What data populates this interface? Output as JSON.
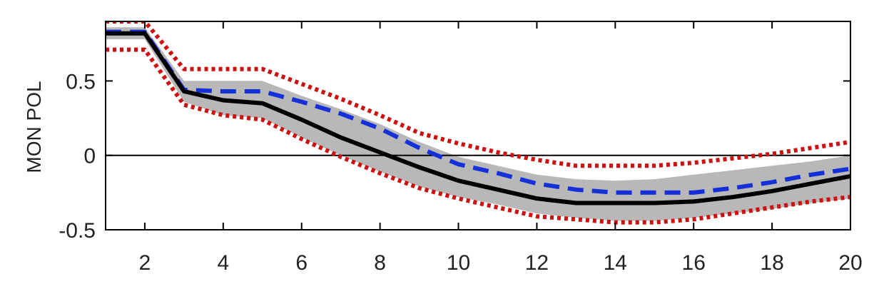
{
  "chart_data": {
    "type": "line",
    "title": "",
    "xlabel": "",
    "ylabel": "MON POL",
    "xlim": [
      1,
      20
    ],
    "ylim": [
      -0.5,
      0.9
    ],
    "xticks": [
      2,
      4,
      6,
      8,
      10,
      12,
      14,
      16,
      18,
      20
    ],
    "yticks": [
      -0.5,
      0,
      0.5
    ],
    "xtick_labels": [
      "2",
      "4",
      "6",
      "8",
      "10",
      "12",
      "14",
      "16",
      "18",
      "20"
    ],
    "ytick_labels": [
      "-0.5",
      "0",
      "0.5"
    ],
    "reference_line": {
      "y": 0,
      "color": "#000000"
    },
    "x": [
      1,
      2,
      3,
      4,
      5,
      6,
      7,
      8,
      9,
      10,
      11,
      12,
      13,
      14,
      15,
      16,
      17,
      18,
      19,
      20
    ],
    "band": {
      "color": "#b8b8b8",
      "lower": [
        0.78,
        0.78,
        0.36,
        0.27,
        0.25,
        0.12,
        0.0,
        -0.11,
        -0.21,
        -0.28,
        -0.33,
        -0.39,
        -0.42,
        -0.44,
        -0.44,
        -0.42,
        -0.39,
        -0.36,
        -0.32,
        -0.29
      ],
      "upper": [
        0.86,
        0.86,
        0.5,
        0.5,
        0.5,
        0.4,
        0.31,
        0.21,
        0.09,
        -0.01,
        -0.07,
        -0.13,
        -0.16,
        -0.17,
        -0.16,
        -0.13,
        -0.1,
        -0.07,
        -0.04,
        0.0
      ]
    },
    "series": [
      {
        "style": "solid",
        "color": "#000000",
        "values": [
          0.82,
          0.82,
          0.43,
          0.37,
          0.35,
          0.24,
          0.12,
          0.02,
          -0.08,
          -0.17,
          -0.23,
          -0.29,
          -0.32,
          -0.32,
          -0.32,
          -0.31,
          -0.28,
          -0.24,
          -0.19,
          -0.14
        ]
      },
      {
        "style": "dashed",
        "color": "#1530d8",
        "values": [
          0.83,
          0.83,
          0.44,
          0.43,
          0.43,
          0.36,
          0.28,
          0.18,
          0.05,
          -0.06,
          -0.12,
          -0.19,
          -0.23,
          -0.25,
          -0.25,
          -0.25,
          -0.22,
          -0.18,
          -0.13,
          -0.09
        ]
      },
      {
        "style": "dotted",
        "color": "#cc1111",
        "values": [
          0.9,
          0.9,
          0.58,
          0.58,
          0.58,
          0.48,
          0.38,
          0.27,
          0.15,
          0.08,
          0.02,
          -0.03,
          -0.07,
          -0.07,
          -0.07,
          -0.05,
          -0.02,
          0.01,
          0.05,
          0.09
        ]
      },
      {
        "style": "dotted",
        "color": "#cc1111",
        "values": [
          0.71,
          0.71,
          0.34,
          0.27,
          0.24,
          0.11,
          -0.01,
          -0.12,
          -0.22,
          -0.29,
          -0.35,
          -0.41,
          -0.43,
          -0.45,
          -0.45,
          -0.43,
          -0.39,
          -0.35,
          -0.31,
          -0.28
        ]
      }
    ]
  }
}
